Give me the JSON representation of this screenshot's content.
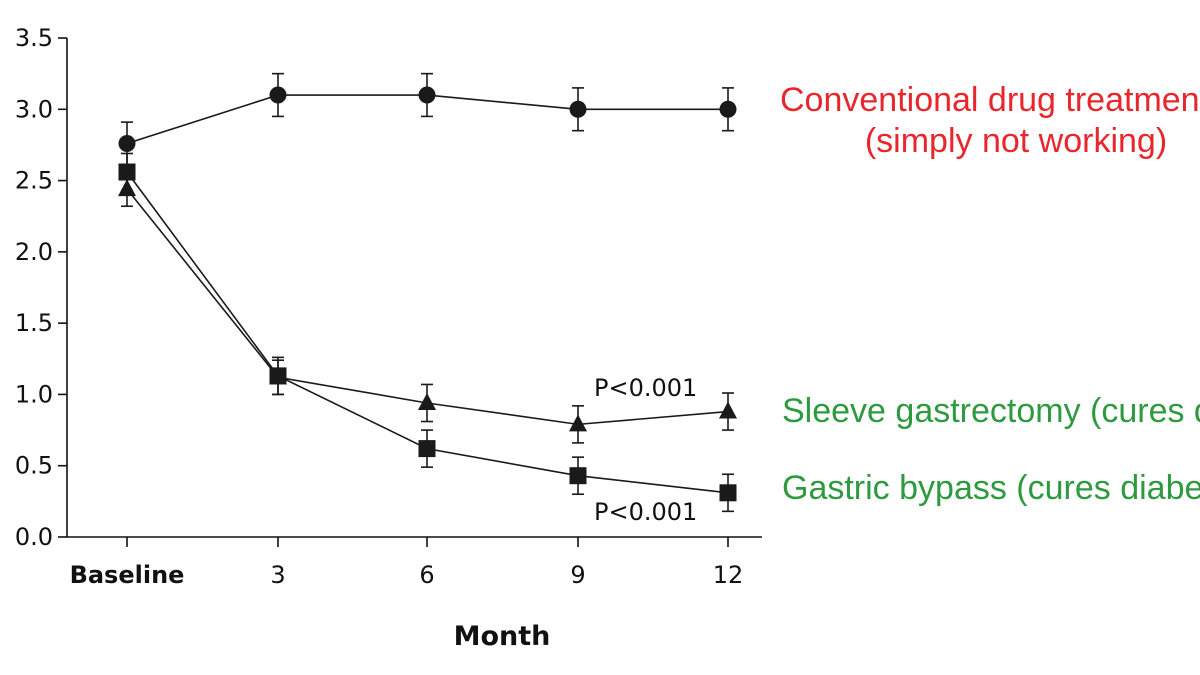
{
  "chart_data": {
    "type": "line",
    "title": "",
    "xlabel": "Month",
    "ylabel": "",
    "categories": [
      "Baseline",
      "3",
      "6",
      "9",
      "12"
    ],
    "ylim": [
      0,
      3.5
    ],
    "yticks": [
      "0.0",
      "0.5",
      "1.0",
      "1.5",
      "2.0",
      "2.5",
      "3.0",
      "3.5"
    ],
    "ytick_values": [
      0,
      0.5,
      1.0,
      1.5,
      2.0,
      2.5,
      3.0,
      3.5
    ],
    "grid": false,
    "series": [
      {
        "name": "Conventional drug treatment",
        "marker": "circle",
        "values": [
          2.76,
          3.1,
          3.1,
          3.0,
          3.0
        ],
        "error": [
          0.15,
          0.15,
          0.15,
          0.15,
          0.15
        ]
      },
      {
        "name": "Sleeve gastrectomy",
        "marker": "triangle",
        "values": [
          2.44,
          1.12,
          0.94,
          0.79,
          0.88
        ],
        "error": [
          0.12,
          0.12,
          0.13,
          0.13,
          0.13
        ]
      },
      {
        "name": "Gastric bypass",
        "marker": "square",
        "values": [
          2.56,
          1.13,
          0.62,
          0.43,
          0.31
        ],
        "error": [
          0.13,
          0.13,
          0.13,
          0.13,
          0.13
        ]
      }
    ],
    "annotations": {
      "pvalue_sleeve": "P<0.001",
      "pvalue_bypass": "P<0.001",
      "conventional_line1": "Conventional drug treatment",
      "conventional_line2": "(simply not working)",
      "sleeve": "Sleeve gastrectomy (cures diabetes)",
      "bypass": "Gastric bypass (cures diabetes)"
    },
    "colors": {
      "axis": "#111111",
      "series": "#1a1a1a",
      "conventional": "#e8262b",
      "surgery": "#2e9a3f"
    }
  }
}
